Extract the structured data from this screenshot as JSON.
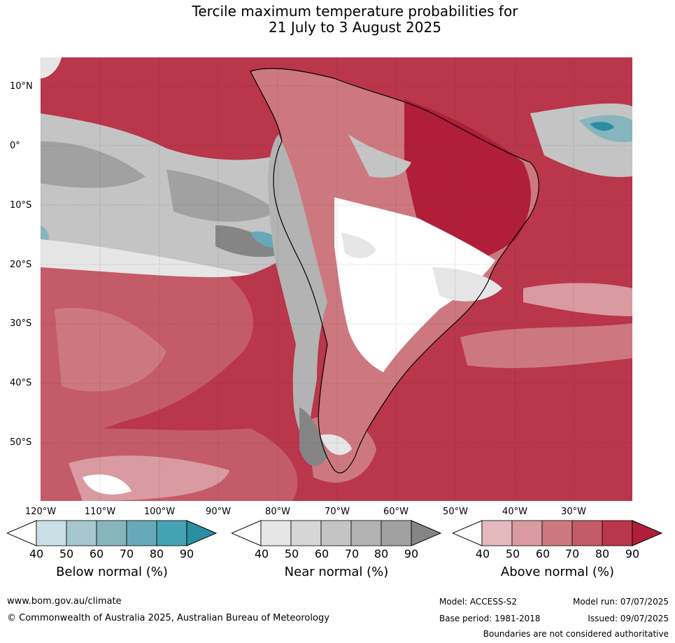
{
  "title_line1": "Tercile maximum temperature probabilities for",
  "title_line2": "21 July to 3 August 2025",
  "lat_labels": [
    "10°N",
    "0°",
    "10°S",
    "20°S",
    "30°S",
    "40°S",
    "50°S"
  ],
  "lon_labels": [
    "120°W",
    "110°W",
    "100°W",
    "90°W",
    "80°W",
    "70°W",
    "60°W",
    "50°W",
    "40°W",
    "30°W"
  ],
  "colorbars": [
    {
      "label": "Below normal (%)",
      "ticks": [
        "40",
        "50",
        "60",
        "70",
        "80",
        "90"
      ],
      "colors": [
        "#c9e0e6",
        "#a5c7cd",
        "#87b5be",
        "#67a9b8",
        "#45a2b4",
        "#2b8fa3"
      ]
    },
    {
      "label": "Near normal (%)",
      "ticks": [
        "40",
        "50",
        "60",
        "70",
        "80",
        "90"
      ],
      "colors": [
        "#e6e6e6",
        "#d6d6d6",
        "#c4c4c4",
        "#b3b3b3",
        "#a1a1a1",
        "#858585"
      ]
    },
    {
      "label": "Above normal (%)",
      "ticks": [
        "40",
        "50",
        "60",
        "70",
        "80",
        "90"
      ],
      "colors": [
        "#e3b9bd",
        "#d99aa2",
        "#cd7880",
        "#c45b68",
        "#b9364b",
        "#b01e3a"
      ]
    }
  ],
  "footer": {
    "website": "www.bom.gov.au/climate",
    "copyright": "© Commonwealth of Australia 2025, Australian Bureau of Meteorology",
    "model": "Model: ACCESS-S2",
    "base_period": "Base period: 1981-2018",
    "model_run": "Model run: 07/07/2025",
    "issued": "Issued: 09/07/2025",
    "disclaimer": "Boundaries are not considered authoritative"
  }
}
